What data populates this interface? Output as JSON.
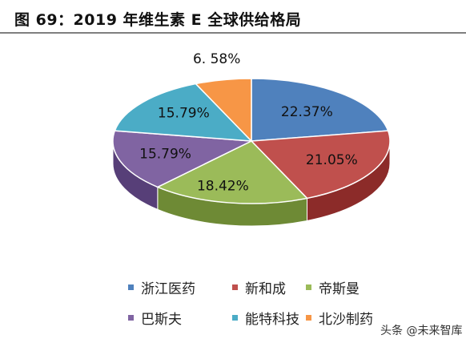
{
  "header": {
    "title": "图 69：2019 年维生素 E 全球供给格局"
  },
  "watermark": {
    "text": "头条 @未来智库"
  },
  "chart_data": {
    "type": "pie",
    "title": "",
    "pie_3d": true,
    "data_label_format": "percent",
    "legend_position": "bottom",
    "series": [
      {
        "name": "浙江医药",
        "value": 22.37,
        "label": "22.37%",
        "color": "#4F81BD",
        "side_color": "#2F5A8E"
      },
      {
        "name": "新和成",
        "value": 21.05,
        "label": "21.05%",
        "color": "#C0504D",
        "side_color": "#8C2B29"
      },
      {
        "name": "帝斯曼",
        "value": 18.42,
        "label": "18.42%",
        "color": "#9BBB59",
        "side_color": "#6E8A35"
      },
      {
        "name": "巴斯夫",
        "value": 15.79,
        "label": "15.79%",
        "color": "#8064A2",
        "side_color": "#573F78"
      },
      {
        "name": "能特科技",
        "value": 15.79,
        "label": "15.79%",
        "color": "#4BACC6",
        "side_color": "#2B7E95"
      },
      {
        "name": "北沙制药",
        "value": 6.58,
        "label": "6. 58%",
        "color": "#F79646",
        "side_color": "#C46A1E"
      }
    ]
  }
}
